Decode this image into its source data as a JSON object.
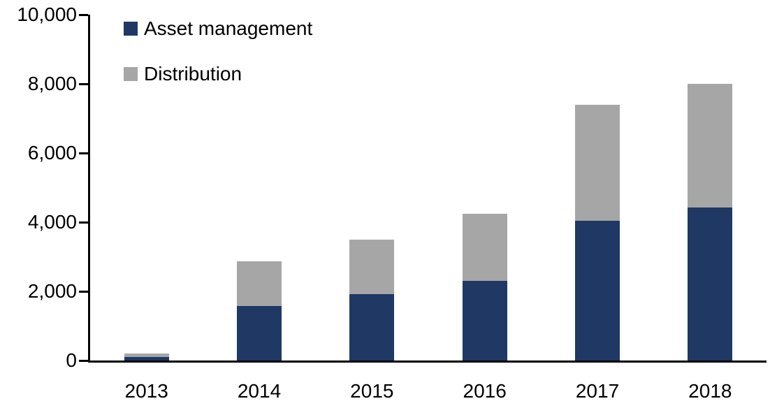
{
  "chart_data": {
    "type": "bar",
    "stacked": true,
    "title": "",
    "categories": [
      "2013",
      "2014",
      "2015",
      "2016",
      "2017",
      "2018"
    ],
    "series": [
      {
        "name": "Asset management",
        "color": "#1F3864",
        "values": [
          100,
          1570,
          1910,
          2310,
          4050,
          4420
        ]
      },
      {
        "name": "Distribution",
        "color": "#A6A6A6",
        "values": [
          100,
          1300,
          1590,
          1940,
          3340,
          3580
        ]
      }
    ],
    "totals": [
      200,
      2870,
      3500,
      4250,
      7390,
      8000
    ],
    "ylim": [
      0,
      10000
    ],
    "ytick_step": 2000,
    "ytick_labels": [
      "0",
      "2,000",
      "4,000",
      "6,000",
      "8,000",
      "10,000"
    ],
    "grid": false,
    "legend_position": "top-left-inside",
    "axis_color": "#000000",
    "background_color": "#FFFFFF"
  }
}
